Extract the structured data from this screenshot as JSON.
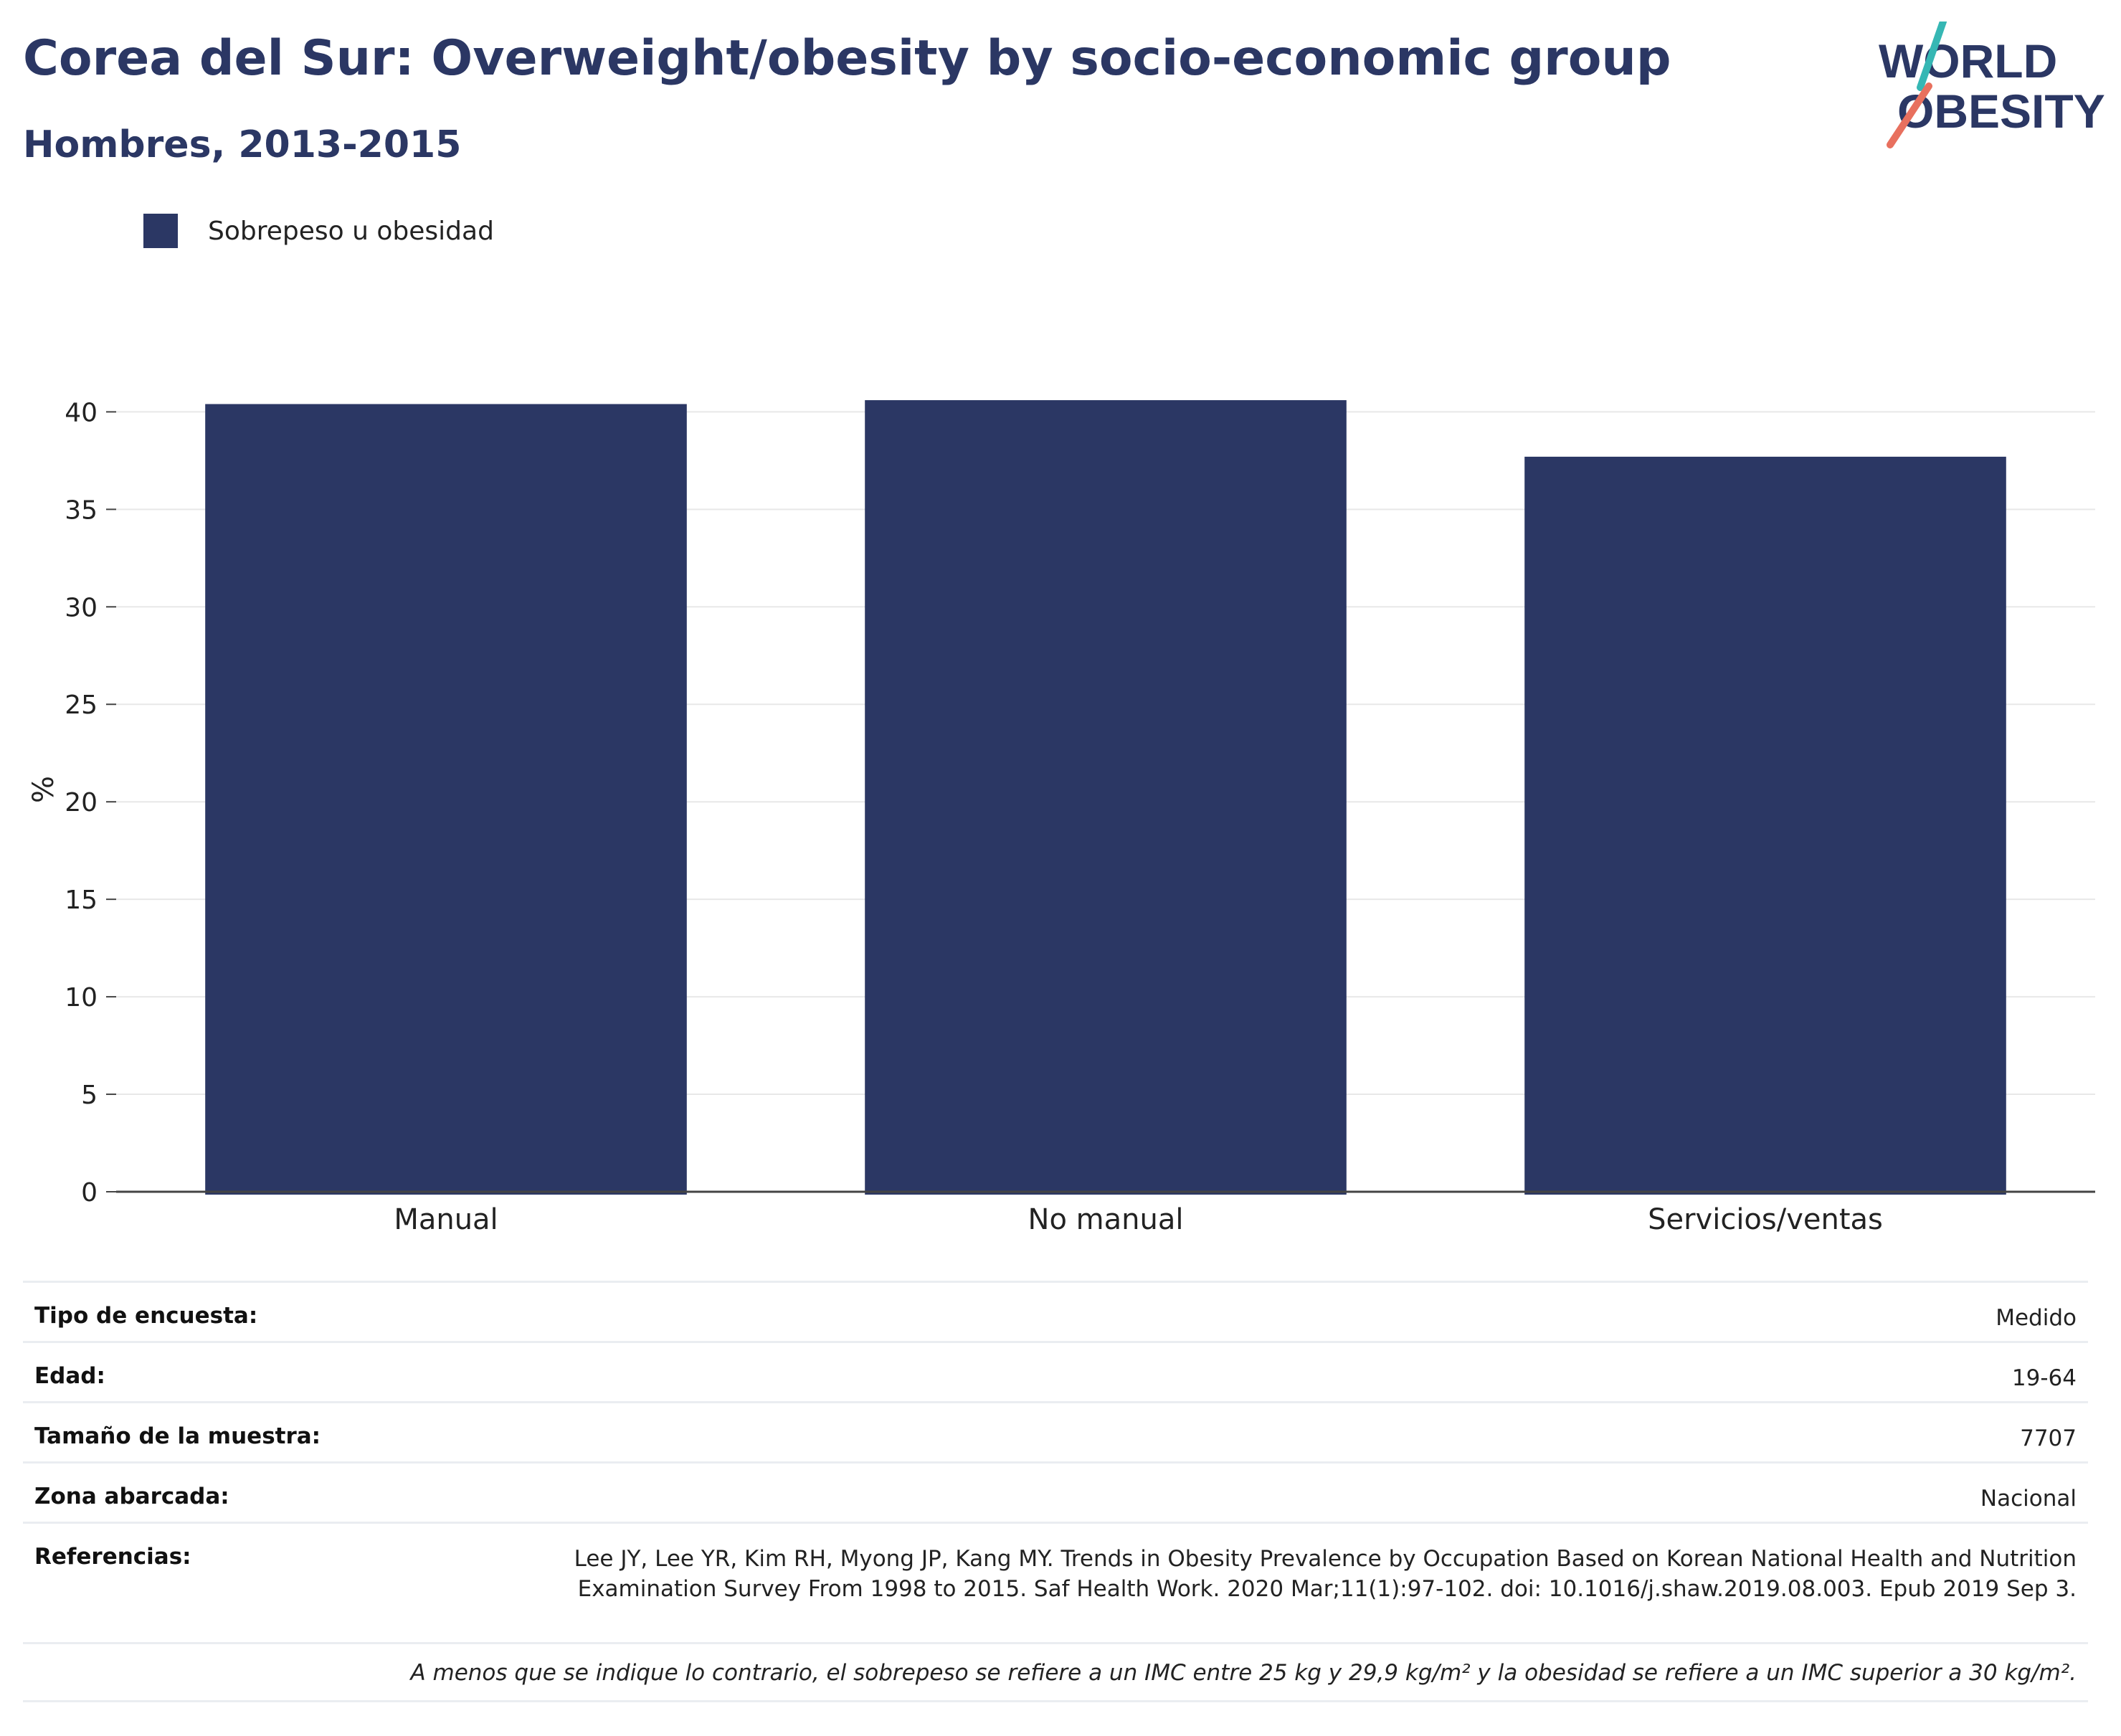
{
  "header": {
    "title": "Corea del Sur: Overweight/obesity by socio-economic group",
    "subtitle": "Hombres, 2013-2015"
  },
  "logo": {
    "line1": "WORLD",
    "line2": "OBESITY",
    "accent_teal": "#36b7b4",
    "accent_coral": "#e8705e"
  },
  "legend": {
    "label": "Sobrepeso u obesidad",
    "color": "#2b3764"
  },
  "chart_data": {
    "type": "bar",
    "categories": [
      "Manual",
      "No manual",
      "Servicios/ventas"
    ],
    "series": [
      {
        "name": "Sobrepeso u obesidad",
        "values": [
          40.4,
          40.6,
          37.7
        ],
        "color": "#2b3764"
      }
    ],
    "ylabel": "%",
    "xlabel": "",
    "ylim": [
      0,
      42
    ],
    "yticks": [
      0,
      5,
      10,
      15,
      20,
      25,
      30,
      35,
      40
    ],
    "grid": true,
    "legend_position": "top-left"
  },
  "info": {
    "rows": [
      {
        "label": "Tipo de encuesta:",
        "value": "Medido"
      },
      {
        "label": "Edad:",
        "value": "19-64"
      },
      {
        "label": "Tamaño de la muestra:",
        "value": "7707"
      },
      {
        "label": "Zona abarcada:",
        "value": "Nacional"
      },
      {
        "label": "Referencias:",
        "value": "Lee JY, Lee YR, Kim RH, Myong JP, Kang MY. Trends in Obesity Prevalence by Occupation Based on Korean National Health and Nutrition Examination Survey From 1998 to 2015. Saf Health Work. 2020 Mar;11(1):97-102. doi: 10.1016/j.shaw.2019.08.003. Epub 2019 Sep 3."
      }
    ],
    "footnote": "A menos que se indique lo contrario, el sobrepeso se refiere a un IMC entre 25 kg y 29,9 kg/m² y la obesidad se refiere a un IMC superior a 30 kg/m²."
  }
}
